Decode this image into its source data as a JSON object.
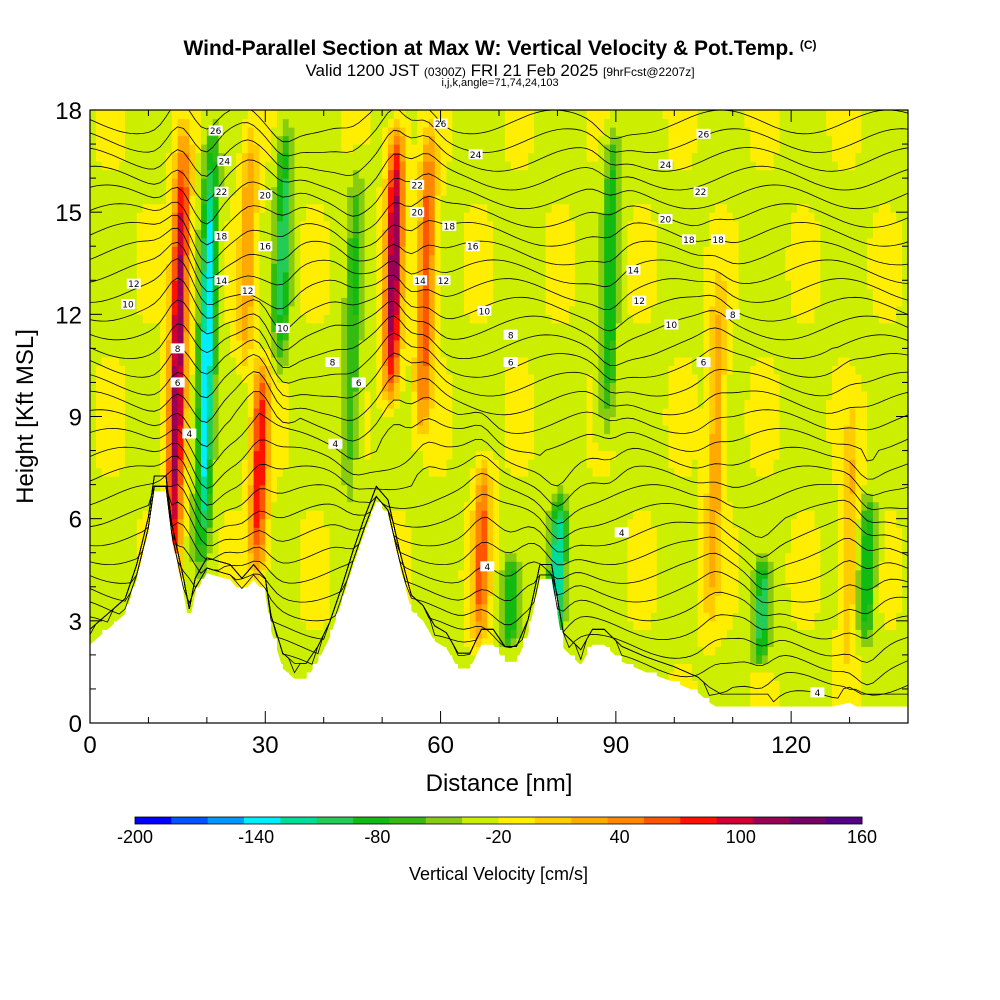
{
  "header": {
    "title": "Wind-Parallel Section at Max W: Vertical Velocity & Pot.Temp.",
    "copyright": "(C)",
    "valid_prefix": "Valid 1200 JST",
    "valid_utc": "(0300Z)",
    "valid_date": "FRI 21 Feb 2025",
    "forecast": "[9hrFcst@2207z]",
    "indices": "i,j,k,angle=71,74,24,103"
  },
  "chart_data": {
    "type": "heatmap",
    "xlabel": "Distance [nm]",
    "ylabel": "Height [Kft MSL]",
    "xlim": [
      0,
      140
    ],
    "ylim": [
      0,
      18
    ],
    "x_ticks": [
      0,
      30,
      60,
      90,
      120
    ],
    "y_ticks": [
      0,
      3,
      6,
      9,
      12,
      15,
      18
    ],
    "colorbar": {
      "label": "Vertical Velocity [cm/s]",
      "range": [
        -200,
        160
      ],
      "step": 20,
      "tick_labels": [
        -200,
        -140,
        -80,
        -20,
        40,
        100,
        160
      ],
      "colors": [
        "#0000ff",
        "#0055ff",
        "#0099ff",
        "#00eeff",
        "#00dd99",
        "#22cc55",
        "#11bb11",
        "#33bb11",
        "#88cc11",
        "#ccee00",
        "#ffee00",
        "#ffcc00",
        "#ffaa00",
        "#ff8800",
        "#ff5500",
        "#ff1100",
        "#cc0033",
        "#990055",
        "#770066",
        "#550088"
      ]
    },
    "terrain_kft": [
      [
        0,
        2.3
      ],
      [
        2,
        2.6
      ],
      [
        4,
        2.9
      ],
      [
        6,
        3.2
      ],
      [
        8,
        4.2
      ],
      [
        10,
        5.6
      ],
      [
        11,
        6.8
      ],
      [
        13,
        6.8
      ],
      [
        14,
        5.4
      ],
      [
        16,
        3.8
      ],
      [
        17,
        2.9
      ],
      [
        18,
        3.8
      ],
      [
        20,
        4.4
      ],
      [
        22,
        4.3
      ],
      [
        24,
        4.2
      ],
      [
        26,
        3.8
      ],
      [
        28,
        4.2
      ],
      [
        30,
        3.8
      ],
      [
        31,
        2.7
      ],
      [
        33,
        1.6
      ],
      [
        35,
        1.3
      ],
      [
        37,
        1.3
      ],
      [
        39,
        1.8
      ],
      [
        41,
        2.5
      ],
      [
        43,
        3.5
      ],
      [
        45,
        4.6
      ],
      [
        47,
        5.6
      ],
      [
        49,
        6.5
      ],
      [
        51,
        6.1
      ],
      [
        53,
        4.6
      ],
      [
        55,
        3.3
      ],
      [
        57,
        3.0
      ],
      [
        59,
        2.4
      ],
      [
        61,
        2.2
      ],
      [
        63,
        1.6
      ],
      [
        65,
        1.6
      ],
      [
        67,
        2.3
      ],
      [
        69,
        2.3
      ],
      [
        71,
        1.8
      ],
      [
        73,
        1.8
      ],
      [
        75,
        2.6
      ],
      [
        77,
        4.2
      ],
      [
        79,
        4.2
      ],
      [
        81,
        2.2
      ],
      [
        84,
        1.7
      ],
      [
        86,
        2.3
      ],
      [
        88,
        2.3
      ],
      [
        91,
        1.8
      ],
      [
        95,
        1.5
      ],
      [
        100,
        1.2
      ],
      [
        104,
        0.9
      ],
      [
        106,
        0.6
      ],
      [
        108,
        0.4
      ],
      [
        125,
        0.4
      ],
      [
        130,
        0.6
      ],
      [
        132,
        0.4
      ],
      [
        140,
        0.4
      ]
    ],
    "updrafts": [
      {
        "x": 15,
        "bottom": 3,
        "top": 18,
        "peak": 160
      },
      {
        "x": 29,
        "bottom": 4,
        "top": 11,
        "peak": 120
      },
      {
        "x": 52,
        "bottom": 9,
        "top": 18,
        "peak": 160
      },
      {
        "x": 57.5,
        "bottom": 8,
        "top": 18,
        "peak": 100
      },
      {
        "x": 67,
        "bottom": 2,
        "top": 8,
        "peak": 90
      },
      {
        "x": 27,
        "bottom": 10,
        "top": 18,
        "peak": 60
      },
      {
        "x": 107,
        "bottom": 2,
        "top": 14,
        "peak": 55
      },
      {
        "x": 130,
        "bottom": 1,
        "top": 10,
        "peak": 45
      }
    ],
    "downdrafts": [
      {
        "x": 20,
        "bottom": 4,
        "top": 18,
        "peak": -140
      },
      {
        "x": 33,
        "bottom": 10,
        "top": 18,
        "peak": -90
      },
      {
        "x": 80,
        "bottom": 2,
        "top": 7,
        "peak": -130
      },
      {
        "x": 89,
        "bottom": 8,
        "top": 18,
        "peak": -80
      },
      {
        "x": 115,
        "bottom": 1.5,
        "top": 5,
        "peak": -90
      },
      {
        "x": 133,
        "bottom": 2,
        "top": 7,
        "peak": -80
      },
      {
        "x": 45,
        "bottom": 6,
        "top": 17,
        "peak": -60
      },
      {
        "x": 72,
        "bottom": 2,
        "top": 5,
        "peak": -80
      }
    ],
    "isentrope_labels": [
      {
        "text": "26",
        "x": 21.5,
        "y": 17.4
      },
      {
        "text": "24",
        "x": 23,
        "y": 16.5
      },
      {
        "text": "22",
        "x": 22.5,
        "y": 15.6
      },
      {
        "text": "20",
        "x": 30,
        "y": 15.5
      },
      {
        "text": "18",
        "x": 22.5,
        "y": 14.3
      },
      {
        "text": "16",
        "x": 30,
        "y": 14.0
      },
      {
        "text": "14",
        "x": 22.5,
        "y": 13.0
      },
      {
        "text": "12",
        "x": 27,
        "y": 12.7
      },
      {
        "text": "10",
        "x": 33,
        "y": 11.6
      },
      {
        "text": "8",
        "x": 15,
        "y": 11.0
      },
      {
        "text": "6",
        "x": 15,
        "y": 10.0
      },
      {
        "text": "4",
        "x": 17,
        "y": 8.5
      },
      {
        "text": "12",
        "x": 7.5,
        "y": 12.9
      },
      {
        "text": "10",
        "x": 6.5,
        "y": 12.3
      },
      {
        "text": "8",
        "x": 41.5,
        "y": 10.6
      },
      {
        "text": "6",
        "x": 46,
        "y": 10.0
      },
      {
        "text": "4",
        "x": 42,
        "y": 8.2
      },
      {
        "text": "26",
        "x": 60,
        "y": 17.6
      },
      {
        "text": "24",
        "x": 66,
        "y": 16.7
      },
      {
        "text": "22",
        "x": 56,
        "y": 15.8
      },
      {
        "text": "20",
        "x": 56,
        "y": 15.0
      },
      {
        "text": "18",
        "x": 61.5,
        "y": 14.6
      },
      {
        "text": "16",
        "x": 65.5,
        "y": 14.0
      },
      {
        "text": "14",
        "x": 56.5,
        "y": 13.0
      },
      {
        "text": "12",
        "x": 60.5,
        "y": 13.0
      },
      {
        "text": "10",
        "x": 67.5,
        "y": 12.1
      },
      {
        "text": "8",
        "x": 72,
        "y": 11.4
      },
      {
        "text": "6",
        "x": 72,
        "y": 10.6
      },
      {
        "text": "4",
        "x": 68,
        "y": 4.6
      },
      {
        "text": "4",
        "x": 91,
        "y": 5.6
      },
      {
        "text": "26",
        "x": 105,
        "y": 17.3
      },
      {
        "text": "24",
        "x": 98.5,
        "y": 16.4
      },
      {
        "text": "22",
        "x": 104.5,
        "y": 15.6
      },
      {
        "text": "20",
        "x": 98.5,
        "y": 14.8
      },
      {
        "text": "18",
        "x": 102.5,
        "y": 14.2
      },
      {
        "text": "18",
        "x": 107.5,
        "y": 14.2
      },
      {
        "text": "14",
        "x": 93,
        "y": 13.3
      },
      {
        "text": "12",
        "x": 94,
        "y": 12.4
      },
      {
        "text": "10",
        "x": 99.5,
        "y": 11.7
      },
      {
        "text": "8",
        "x": 110,
        "y": 12.0
      },
      {
        "text": "6",
        "x": 105,
        "y": 10.6
      },
      {
        "text": "4",
        "x": 124.5,
        "y": 0.9
      }
    ]
  }
}
